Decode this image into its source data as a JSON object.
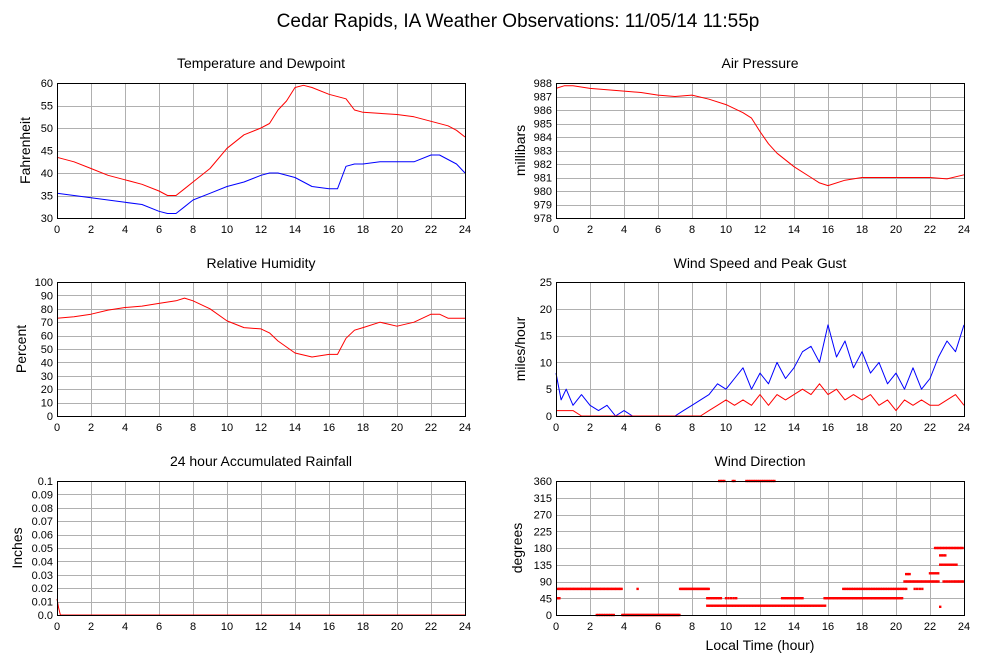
{
  "page": {
    "title": "Cedar Rapids, IA Weather Observations: 11/05/14 11:55p",
    "xlabel": "Local Time (hour)"
  },
  "colors": {
    "red": "#ff0000",
    "blue": "#0000ff"
  },
  "chart_data": [
    {
      "id": "temp",
      "type": "line",
      "title": "Temperature and Dewpoint",
      "xlabel": "",
      "ylabel": "Fahrenheit",
      "xlim": [
        0,
        24
      ],
      "ylim": [
        30,
        60
      ],
      "xticks": [
        0,
        2,
        4,
        6,
        8,
        10,
        12,
        14,
        16,
        18,
        20,
        22,
        24
      ],
      "yticks": [
        30,
        35,
        40,
        45,
        50,
        55,
        60
      ],
      "series": [
        {
          "color": "#ff0000",
          "x": [
            0,
            1,
            2,
            3,
            4,
            5,
            6,
            6.5,
            7,
            7.5,
            8,
            9,
            10,
            11,
            12,
            12.5,
            13,
            13.5,
            14,
            14.5,
            15,
            16,
            17,
            17.5,
            18,
            20,
            21,
            22,
            23,
            23.5,
            24
          ],
          "y": [
            43.5,
            42.5,
            41,
            39.5,
            38.5,
            37.5,
            36,
            35,
            35,
            36.5,
            38,
            41,
            45.5,
            48.5,
            50,
            51,
            54,
            56,
            59,
            59.5,
            59,
            57.5,
            56.5,
            54,
            53.5,
            53,
            52.5,
            51.5,
            50.5,
            49.5,
            48
          ]
        },
        {
          "color": "#0000ff",
          "x": [
            0,
            1,
            2,
            3,
            4,
            5,
            6,
            6.5,
            7,
            7.5,
            8,
            9,
            10,
            11,
            12,
            12.5,
            13,
            14,
            15,
            16,
            16.5,
            17,
            17.5,
            18,
            19,
            20,
            21,
            22,
            22.5,
            23,
            23.5,
            24
          ],
          "y": [
            35.5,
            35,
            34.5,
            34,
            33.5,
            33,
            31.5,
            31,
            31,
            32.5,
            34,
            35.5,
            37,
            38,
            39.5,
            40,
            40,
            39,
            37,
            36.5,
            36.5,
            41.5,
            42,
            42,
            42.5,
            42.5,
            42.5,
            44,
            44,
            43,
            42,
            40
          ]
        }
      ]
    },
    {
      "id": "pressure",
      "type": "line",
      "title": "Air Pressure",
      "xlabel": "",
      "ylabel": "millibars",
      "xlim": [
        0,
        24
      ],
      "ylim": [
        978,
        988
      ],
      "xticks": [
        0,
        2,
        4,
        6,
        8,
        10,
        12,
        14,
        16,
        18,
        20,
        22,
        24
      ],
      "yticks": [
        978,
        979,
        980,
        981,
        982,
        983,
        984,
        985,
        986,
        987,
        988
      ],
      "series": [
        {
          "color": "#ff0000",
          "x": [
            0,
            0.5,
            1,
            2,
            3,
            4,
            5,
            6,
            7,
            8,
            9,
            10,
            11,
            11.5,
            12,
            12.5,
            13,
            14,
            15,
            15.5,
            16,
            17,
            18,
            20,
            21,
            22,
            23,
            24
          ],
          "y": [
            987.6,
            987.8,
            987.8,
            987.6,
            987.5,
            987.4,
            987.3,
            987.1,
            987.0,
            987.1,
            986.8,
            986.4,
            985.8,
            985.4,
            984.4,
            983.5,
            982.8,
            981.8,
            981.0,
            980.6,
            980.4,
            980.8,
            981.0,
            981.0,
            981.0,
            981.0,
            980.9,
            981.2
          ]
        }
      ]
    },
    {
      "id": "humidity",
      "type": "line",
      "title": "Relative Humidity",
      "xlabel": "",
      "ylabel": "Percent",
      "xlim": [
        0,
        24
      ],
      "ylim": [
        0,
        100
      ],
      "xticks": [
        0,
        2,
        4,
        6,
        8,
        10,
        12,
        14,
        16,
        18,
        20,
        22,
        24
      ],
      "yticks": [
        0,
        10,
        20,
        30,
        40,
        50,
        60,
        70,
        80,
        90,
        100
      ],
      "series": [
        {
          "color": "#ff0000",
          "x": [
            0,
            1,
            2,
            3,
            4,
            5,
            6,
            7,
            7.5,
            8,
            9,
            10,
            11,
            12,
            12.5,
            13,
            14,
            15,
            16,
            16.5,
            17,
            17.5,
            18,
            19,
            20,
            21,
            22,
            22.5,
            23,
            24
          ],
          "y": [
            73,
            74,
            76,
            79,
            81,
            82,
            84,
            86,
            88,
            86,
            80,
            71,
            66,
            65,
            62,
            56,
            47,
            44,
            46,
            46,
            58,
            64,
            66,
            70,
            67,
            70,
            76,
            76,
            73,
            73
          ]
        }
      ]
    },
    {
      "id": "wind",
      "type": "line",
      "title": "Wind Speed and Peak Gust",
      "xlabel": "",
      "ylabel": "miles/hour",
      "xlim": [
        0,
        24
      ],
      "ylim": [
        0,
        25
      ],
      "xticks": [
        0,
        2,
        4,
        6,
        8,
        10,
        12,
        14,
        16,
        18,
        20,
        22,
        24
      ],
      "yticks": [
        0,
        5,
        10,
        15,
        20,
        25
      ],
      "series": [
        {
          "color": "#0000ff",
          "x": [
            0,
            0.3,
            0.6,
            1,
            1.5,
            2,
            2.5,
            3,
            3.5,
            4,
            4.5,
            5,
            6,
            7,
            7.5,
            8,
            8.5,
            9,
            9.5,
            10,
            10.5,
            11,
            11.5,
            12,
            12.5,
            13,
            13.5,
            14,
            14.5,
            15,
            15.5,
            16,
            16.5,
            17,
            17.5,
            18,
            18.5,
            19,
            19.5,
            20,
            20.5,
            21,
            21.5,
            22,
            22.5,
            23,
            23.5,
            24
          ],
          "y": [
            8,
            3,
            5,
            2,
            4,
            2,
            1,
            2,
            0,
            1,
            0,
            0,
            0,
            0,
            1,
            2,
            3,
            4,
            6,
            5,
            7,
            9,
            5,
            8,
            6,
            10,
            7,
            9,
            12,
            13,
            10,
            17,
            11,
            14,
            9,
            12,
            8,
            10,
            6,
            8,
            5,
            9,
            5,
            7,
            11,
            14,
            12,
            17
          ]
        },
        {
          "color": "#ff0000",
          "x": [
            0,
            0.5,
            1,
            1.5,
            2,
            3,
            4,
            5,
            6,
            7,
            8,
            8.5,
            9,
            9.5,
            10,
            10.5,
            11,
            11.5,
            12,
            12.5,
            13,
            13.5,
            14,
            14.5,
            15,
            15.5,
            16,
            16.5,
            17,
            17.5,
            18,
            18.5,
            19,
            19.5,
            20,
            20.5,
            21,
            21.5,
            22,
            22.5,
            23,
            23.5,
            24
          ],
          "y": [
            1,
            1,
            1,
            0,
            0,
            0,
            0,
            0,
            0,
            0,
            0,
            0,
            1,
            2,
            3,
            2,
            3,
            2,
            4,
            2,
            4,
            3,
            4,
            5,
            4,
            6,
            4,
            5,
            3,
            4,
            3,
            4,
            2,
            3,
            1,
            3,
            2,
            3,
            2,
            2,
            3,
            4,
            2
          ]
        }
      ]
    },
    {
      "id": "rain",
      "type": "line",
      "title": "24 hour Accumulated Rainfall",
      "xlabel": "",
      "ylabel": "Inches",
      "xlim": [
        0,
        24
      ],
      "ylim": [
        0,
        0.1
      ],
      "xticks": [
        0,
        2,
        4,
        6,
        8,
        10,
        12,
        14,
        16,
        18,
        20,
        22,
        24
      ],
      "yticks": [
        0,
        0.01,
        0.02,
        0.03,
        0.04,
        0.05,
        0.06,
        0.07,
        0.08,
        0.09,
        0.1
      ],
      "ytick_labels": [
        "0.0",
        "0.01",
        "0.02",
        "0.03",
        "0.04",
        "0.05",
        "0.06",
        "0.07",
        "0.08",
        "0.09",
        "0.1"
      ],
      "series": [
        {
          "color": "#ff0000",
          "x": [
            0,
            0.1,
            0.2,
            24
          ],
          "y": [
            0.012,
            0.005,
            0,
            0
          ]
        }
      ]
    },
    {
      "id": "direction",
      "type": "scatter",
      "title": "Wind Direction",
      "xlabel": "Local Time (hour)",
      "ylabel": "degrees",
      "xlim": [
        0,
        24
      ],
      "ylim": [
        0,
        360
      ],
      "xticks": [
        0,
        2,
        4,
        6,
        8,
        10,
        12,
        14,
        16,
        18,
        20,
        22,
        24
      ],
      "yticks": [
        0,
        45,
        90,
        135,
        180,
        225,
        270,
        315,
        360
      ],
      "series": [
        {
          "color": "#ff0000",
          "segments": [
            {
              "x0": 0.1,
              "x1": 3.9,
              "step": 0.08,
              "y": 70
            },
            {
              "x0": 0.1,
              "x1": 0.2,
              "step": 0.05,
              "y": 45
            },
            {
              "x0": 2.4,
              "x1": 3.4,
              "step": 0.1,
              "y": 0
            },
            {
              "x0": 3.9,
              "x1": 7.3,
              "step": 0.06,
              "y": 0
            },
            {
              "x0": 4.8,
              "x1": 4.8,
              "step": 0.1,
              "y": 70
            },
            {
              "x0": 7.3,
              "x1": 9.0,
              "step": 0.07,
              "y": 70
            },
            {
              "x0": 8.9,
              "x1": 9.7,
              "step": 0.1,
              "y": 45
            },
            {
              "x0": 8.9,
              "x1": 15.9,
              "step": 0.09,
              "y": 25
            },
            {
              "x0": 9.6,
              "x1": 9.9,
              "step": 0.1,
              "y": 360
            },
            {
              "x0": 10.4,
              "x1": 10.5,
              "step": 0.1,
              "y": 360
            },
            {
              "x0": 11.2,
              "x1": 12.9,
              "step": 0.11,
              "y": 360
            },
            {
              "x0": 10.0,
              "x1": 10.6,
              "step": 0.15,
              "y": 45
            },
            {
              "x0": 13.3,
              "x1": 14.6,
              "step": 0.12,
              "y": 45
            },
            {
              "x0": 15.8,
              "x1": 20.4,
              "step": 0.08,
              "y": 45
            },
            {
              "x0": 16.9,
              "x1": 20.6,
              "step": 0.1,
              "y": 70
            },
            {
              "x0": 20.5,
              "x1": 22.5,
              "step": 0.08,
              "y": 90
            },
            {
              "x0": 20.6,
              "x1": 20.8,
              "step": 0.1,
              "y": 110
            },
            {
              "x0": 21.1,
              "x1": 21.6,
              "step": 0.15,
              "y": 70
            },
            {
              "x0": 22.0,
              "x1": 22.5,
              "step": 0.12,
              "y": 112
            },
            {
              "x0": 22.3,
              "x1": 24.0,
              "step": 0.09,
              "y": 180
            },
            {
              "x0": 22.6,
              "x1": 22.9,
              "step": 0.1,
              "y": 160
            },
            {
              "x0": 22.6,
              "x1": 23.6,
              "step": 0.12,
              "y": 135
            },
            {
              "x0": 22.8,
              "x1": 23.3,
              "step": 0.1,
              "y": 90
            },
            {
              "x0": 23.4,
              "x1": 24.0,
              "step": 0.08,
              "y": 90
            },
            {
              "x0": 22.6,
              "x1": 22.6,
              "step": 0.1,
              "y": 22
            }
          ]
        }
      ]
    }
  ]
}
